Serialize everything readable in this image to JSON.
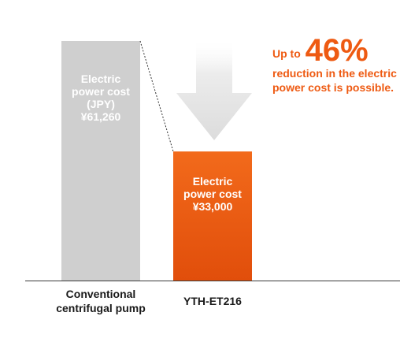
{
  "colors": {
    "conventional_bar": "#cfcfcf",
    "ytheta_bar_top": "#f26a1b",
    "ytheta_bar_bottom": "#e14e0b",
    "accent_text": "#ee5a12",
    "arrow": "#e2e2e2",
    "baseline": "#3a3a3a"
  },
  "callout": {
    "prefix": "Up to",
    "percent": "46%",
    "line2": "reduction in the electric",
    "line3": "power cost is possible."
  },
  "chart_data": {
    "type": "bar",
    "categories": [
      "Conventional centrifugal pump",
      "YTH-ET216"
    ],
    "series": [
      {
        "values": [
          61260,
          33000
        ]
      }
    ],
    "ylim": [
      0,
      61260
    ],
    "legend": "none",
    "grid": false,
    "bar_labels": [
      [
        "Electric",
        "power cost",
        "(JPY)",
        "¥61,260"
      ],
      [
        "Electric",
        "power cost",
        "¥33,000"
      ]
    ],
    "category_labels": [
      [
        "Conventional",
        "centrifugal pump"
      ],
      [
        "YTH-ET216"
      ]
    ],
    "annotation": "Up to 46% reduction in the electric power cost is possible."
  }
}
